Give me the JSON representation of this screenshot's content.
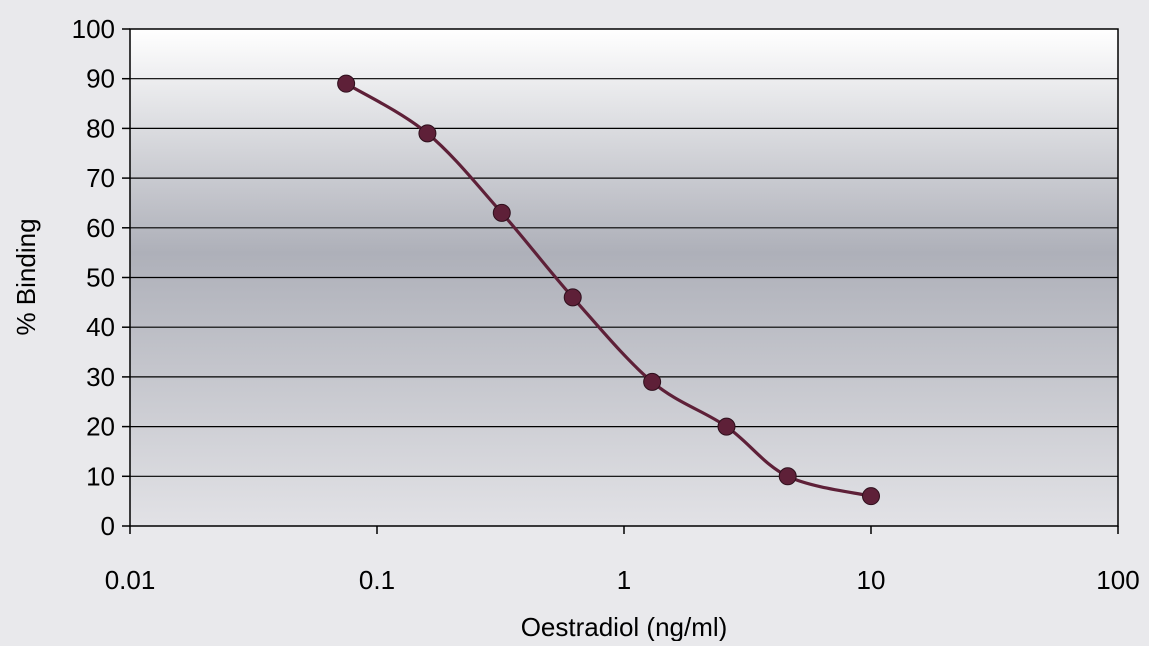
{
  "chart_data": {
    "type": "line",
    "xlabel": "Oestradiol (ng/ml)",
    "ylabel": "% Binding",
    "x_scale": "log",
    "xlim": [
      0.01,
      100
    ],
    "ylim": [
      0,
      100
    ],
    "x_ticks": [
      "0.01",
      "0.1",
      "1",
      "10",
      "100"
    ],
    "y_ticks": [
      "0",
      "10",
      "20",
      "30",
      "40",
      "50",
      "60",
      "70",
      "80",
      "90",
      "100"
    ],
    "grid": "horizontal",
    "legend": "none",
    "series": [
      {
        "color": "#5e2038",
        "marker": "circle",
        "x": [
          0.075,
          0.16,
          0.32,
          0.62,
          1.3,
          2.6,
          4.6,
          10
        ],
        "y": [
          89,
          79,
          63,
          46,
          29,
          20,
          10,
          6
        ]
      }
    ]
  }
}
